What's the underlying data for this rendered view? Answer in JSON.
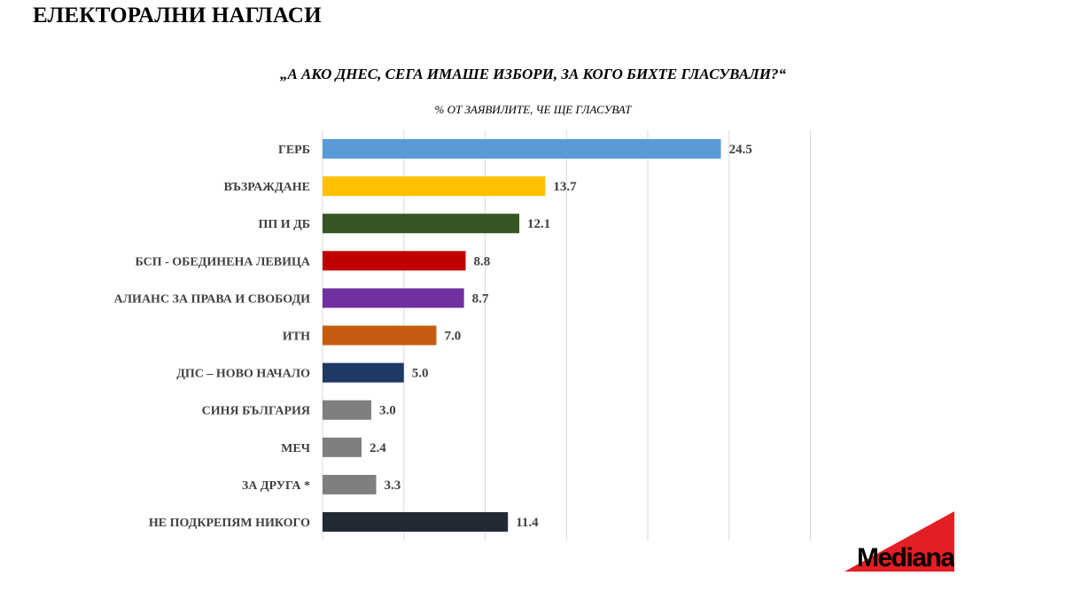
{
  "page": {
    "heading": "ЕЛЕКТОРАЛНИ НАГЛАСИ"
  },
  "chart_data": {
    "type": "bar",
    "orientation": "horizontal",
    "title": "„А АКО ДНЕС, СЕГА ИМАШЕ ИЗБОРИ, ЗА КОГО БИХТЕ ГЛАСУВАЛИ?“",
    "subtitle": "% ОТ ЗАЯВИЛИТЕ, ЧЕ ЩЕ ГЛАСУВАТ",
    "categories": [
      "ГЕРБ",
      "ВЪЗРАЖДАНЕ",
      "ПП И ДБ",
      "БСП - ОБЕДИНЕНА ЛЕВИЦА",
      "АЛИАНС ЗА ПРАВА И СВОБОДИ",
      "ИТН",
      "ДПС – НОВО НАЧАЛО",
      "СИНЯ БЪЛГАРИЯ",
      "МЕЧ",
      "ЗА ДРУГА *",
      "НЕ ПОДКРЕПЯМ НИКОГО"
    ],
    "values": [
      24.5,
      13.7,
      12.1,
      8.8,
      8.7,
      7.0,
      5.0,
      3.0,
      2.4,
      3.3,
      11.4
    ],
    "value_labels": [
      "24.5",
      "13.7",
      "12.1",
      "8.8",
      "8.7",
      "7.0",
      "5.0",
      "3.0",
      "2.4",
      "3.3",
      "11.4"
    ],
    "colors": [
      "#5b9bd5",
      "#ffc000",
      "#375623",
      "#c00000",
      "#7030a0",
      "#c55a11",
      "#1f3864",
      "#7f7f7f",
      "#7f7f7f",
      "#7f7f7f",
      "#222a35"
    ],
    "xlim": [
      0,
      30
    ],
    "grid_step": 5,
    "grid": true,
    "legend": false
  },
  "logo": {
    "text": "Mediana",
    "color": "#e31e24"
  }
}
